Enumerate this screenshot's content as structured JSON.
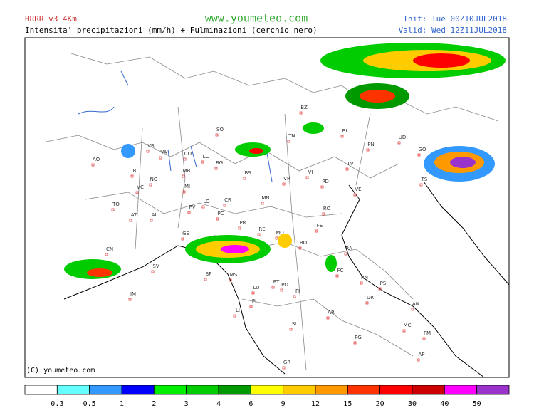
{
  "header": {
    "model": "HRRR v3 4Km",
    "subtitle": "Intensita' precipitazioni (mm/h) + Fulminazioni (cerchio nero)",
    "site": "www.youmeteo.com",
    "init": "Init: Tue 00Z10JUL2018",
    "valid": "Valid: Wed 12Z11JUL2018"
  },
  "copyright": "(C) youmeteo.com",
  "cities": [
    "BZ",
    "SO",
    "TN",
    "BL",
    "UD",
    "PN",
    "GO",
    "TS",
    "AO",
    "VB",
    "VA",
    "CO",
    "LC",
    "BG",
    "BI",
    "NO",
    "MB",
    "MI",
    "VC",
    "BS",
    "VR",
    "VI",
    "TV",
    "PD",
    "VE",
    "LO",
    "CR",
    "PV",
    "PC",
    "TO",
    "AT",
    "AL",
    "MN",
    "RO",
    "FE",
    "PR",
    "RE",
    "MO",
    "BO",
    "SP",
    "GE",
    "CN",
    "SV",
    "IM",
    "RA",
    "FC",
    "RN",
    "PS",
    "UR",
    "AN",
    "MS",
    "LU",
    "PT",
    "PO",
    "FI",
    "PI",
    "LI",
    "AR",
    "SI",
    "PG",
    "MC",
    "FM",
    "GR",
    "AP"
  ],
  "legend": {
    "colors": [
      "#ffffff",
      "#66ffff",
      "#3399ff",
      "#0000ff",
      "#00ee00",
      "#00cc00",
      "#009900",
      "#ffff00",
      "#ffcc00",
      "#ff9900",
      "#ff3300",
      "#ff0000",
      "#cc0000",
      "#ff00ff",
      "#9933cc"
    ],
    "labels": [
      "0.3",
      "0.5",
      "1",
      "2",
      "3",
      "4",
      "6",
      "9",
      "12",
      "15",
      "20",
      "30",
      "40",
      "50"
    ]
  }
}
